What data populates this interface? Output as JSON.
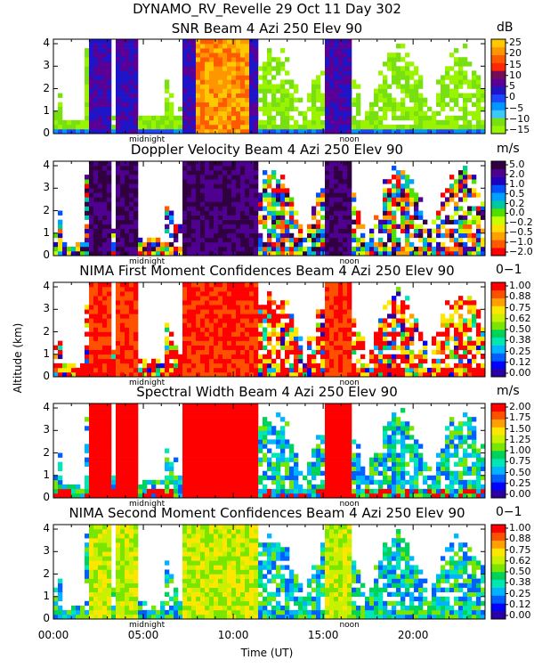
{
  "chart_data": {
    "type": "heatmap",
    "title": "DYNAMO_RV_Revelle  29 Oct 11 Day 302",
    "xlabel": "Time (UT)",
    "ylabel": "Altitude (km)",
    "x_ticks": [
      "00:00",
      "05:00",
      "10:00",
      "15:00",
      "20:00"
    ],
    "x_range_hours": [
      0,
      24
    ],
    "y_ticks": [
      0,
      1,
      2,
      3,
      4
    ],
    "y_range_km": [
      0,
      4.2
    ],
    "panel_annotations": [
      "midnight",
      "noon"
    ],
    "panels": [
      {
        "title": "SNR Beam 4 Azi 250 Elev 90",
        "units": "dB",
        "colorbar_ticks": [
          "25",
          "20",
          "15",
          "10",
          "5",
          "0",
          "−5",
          "−10",
          "−15"
        ],
        "colorbar_range": [
          -15,
          25
        ],
        "colors": [
          "#9af400",
          "#78e010",
          "#3cc8ff",
          "#0096ff",
          "#1e46ff",
          "#1e14c8",
          "#5a0096",
          "#780a5a",
          "#ff2800",
          "#ff5a00",
          "#ff9600",
          "#ffc800"
        ]
      },
      {
        "title": "Doppler Velocity Beam 4 Azi 250 Elev 90",
        "units": "m/s",
        "colorbar_ticks": [
          "5.0",
          "2.0",
          "1.0",
          "0.5",
          "0.2",
          "0.0",
          "−0.2",
          "−0.5",
          "−1.0",
          "−2.0"
        ],
        "colorbar_range": [
          -2,
          5
        ],
        "colors": [
          "#ff0000",
          "#ff5a00",
          "#ffa000",
          "#ffe000",
          "#c8ff00",
          "#50e000",
          "#00c8a0",
          "#00a0ff",
          "#0050ff",
          "#2000c0",
          "#500090",
          "#300040"
        ]
      },
      {
        "title": "NIMA First Moment Confidences Beam 4 Azi 250 Elev 90",
        "units": "0−1",
        "colorbar_ticks": [
          "1.00",
          "0.88",
          "0.75",
          "0.62",
          "0.50",
          "0.38",
          "0.25",
          "0.12",
          "0.00"
        ],
        "colorbar_range": [
          0,
          1
        ],
        "colors": [
          "#2a00a0",
          "#0000ff",
          "#0060ff",
          "#00b4ff",
          "#00e6b4",
          "#00d25a",
          "#78e600",
          "#c8f000",
          "#ffe600",
          "#ffa000",
          "#ff5000",
          "#ff0000"
        ]
      },
      {
        "title": "Spectral Width Beam 4 Azi 250 Elev 90",
        "units": "m/s",
        "colorbar_ticks": [
          "2.00",
          "1.75",
          "1.50",
          "1.25",
          "1.00",
          "0.75",
          "0.50",
          "0.25",
          "0.00"
        ],
        "colorbar_range": [
          0,
          2
        ],
        "colors": [
          "#2a00a0",
          "#0000ff",
          "#0060ff",
          "#00b4ff",
          "#00e6b4",
          "#00d25a",
          "#78e600",
          "#c8f000",
          "#ffe600",
          "#ffa000",
          "#ff5000",
          "#ff0000"
        ]
      },
      {
        "title": "NIMA Second Moment Confidences Beam 4 Azi 250 Elev 90",
        "units": "0−1",
        "colorbar_ticks": [
          "1.00",
          "0.88",
          "0.75",
          "0.62",
          "0.50",
          "0.38",
          "0.25",
          "0.12",
          "0.00"
        ],
        "colorbar_range": [
          0,
          1
        ],
        "colors": [
          "#2a00a0",
          "#0000ff",
          "#0060ff",
          "#00b4ff",
          "#00e6b4",
          "#00d25a",
          "#78e600",
          "#c8f000",
          "#ffe600",
          "#ffa000",
          "#ff5000",
          "#ff0000"
        ]
      }
    ]
  }
}
